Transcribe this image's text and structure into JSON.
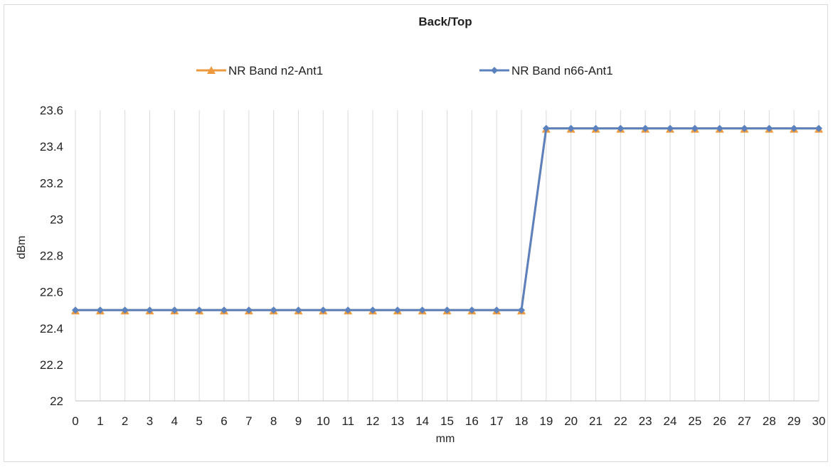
{
  "chart_data": {
    "type": "line",
    "title": "Back/Top",
    "xlabel": "mm",
    "ylabel": "dBm",
    "x": [
      0,
      1,
      2,
      3,
      4,
      5,
      6,
      7,
      8,
      9,
      10,
      11,
      12,
      13,
      14,
      15,
      16,
      17,
      18,
      19,
      20,
      21,
      22,
      23,
      24,
      25,
      26,
      27,
      28,
      29,
      30
    ],
    "ylim": [
      22,
      23.6
    ],
    "yticks": [
      "22",
      "22.2",
      "22.4",
      "22.6",
      "22.8",
      "23",
      "23.2",
      "23.4",
      "23.6"
    ],
    "ytick_values": [
      22,
      22.2,
      22.4,
      22.6,
      22.8,
      23,
      23.2,
      23.4,
      23.6
    ],
    "grid": "vertical",
    "legend_position": "top",
    "series": [
      {
        "name": "NR Band n2-Ant1",
        "color": "#ED9A3F",
        "marker": "triangle",
        "values": [
          22.5,
          22.5,
          22.5,
          22.5,
          22.5,
          22.5,
          22.5,
          22.5,
          22.5,
          22.5,
          22.5,
          22.5,
          22.5,
          22.5,
          22.5,
          22.5,
          22.5,
          22.5,
          22.5,
          23.5,
          23.5,
          23.5,
          23.5,
          23.5,
          23.5,
          23.5,
          23.5,
          23.5,
          23.5,
          23.5,
          23.5
        ]
      },
      {
        "name": "NR Band n66-Ant1",
        "color": "#5B82BE",
        "marker": "diamond",
        "values": [
          22.5,
          22.5,
          22.5,
          22.5,
          22.5,
          22.5,
          22.5,
          22.5,
          22.5,
          22.5,
          22.5,
          22.5,
          22.5,
          22.5,
          22.5,
          22.5,
          22.5,
          22.5,
          22.5,
          23.5,
          23.5,
          23.5,
          23.5,
          23.5,
          23.5,
          23.5,
          23.5,
          23.5,
          23.5,
          23.5,
          23.5
        ]
      }
    ]
  }
}
